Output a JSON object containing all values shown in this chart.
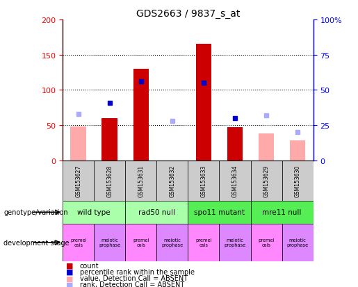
{
  "title": "GDS2663 / 9837_s_at",
  "samples": [
    "GSM153627",
    "GSM153628",
    "GSM153631",
    "GSM153632",
    "GSM153633",
    "GSM153634",
    "GSM153629",
    "GSM153630"
  ],
  "count_present": [
    null,
    60,
    130,
    null,
    165,
    47,
    null,
    null
  ],
  "count_absent": [
    48,
    null,
    null,
    null,
    null,
    null,
    38,
    28
  ],
  "rank_present": [
    null,
    41,
    56,
    null,
    55,
    30,
    null,
    null
  ],
  "rank_absent": [
    33,
    null,
    null,
    28,
    null,
    null,
    32,
    20
  ],
  "left_ylim": [
    0,
    200
  ],
  "right_ylim": [
    0,
    100
  ],
  "left_yticks": [
    0,
    50,
    100,
    150,
    200
  ],
  "right_yticks": [
    0,
    25,
    50,
    75,
    100
  ],
  "right_yticklabels": [
    "0",
    "25",
    "50",
    "75",
    "100%"
  ],
  "genotype_groups": [
    {
      "label": "wild type",
      "start": 0,
      "end": 2,
      "color": "#aaffaa"
    },
    {
      "label": "rad50 null",
      "start": 2,
      "end": 4,
      "color": "#aaffaa"
    },
    {
      "label": "spo11 mutant",
      "start": 4,
      "end": 6,
      "color": "#55ee55"
    },
    {
      "label": "mre11 null",
      "start": 6,
      "end": 8,
      "color": "#55ee55"
    }
  ],
  "dev_colors": [
    "#ff88ff",
    "#dd88ff",
    "#ff88ff",
    "#dd88ff",
    "#ff88ff",
    "#dd88ff",
    "#ff88ff",
    "#dd88ff"
  ],
  "dev_labels": [
    "premei\nosis",
    "meiotic\nprophase",
    "premei\nosis",
    "meiotic\nprophase",
    "premei\nosis",
    "meiotic\nprophase",
    "premei\nosis",
    "meiotic\nprophase"
  ],
  "count_color": "#cc0000",
  "count_absent_color": "#ffaaaa",
  "rank_color": "#0000cc",
  "rank_absent_color": "#aaaaff",
  "sample_bg_color": "#cccccc",
  "legend_items": [
    {
      "label": "count",
      "color": "#cc0000"
    },
    {
      "label": "percentile rank within the sample",
      "color": "#0000cc"
    },
    {
      "label": "value, Detection Call = ABSENT",
      "color": "#ffaaaa"
    },
    {
      "label": "rank, Detection Call = ABSENT",
      "color": "#aaaaff"
    }
  ]
}
